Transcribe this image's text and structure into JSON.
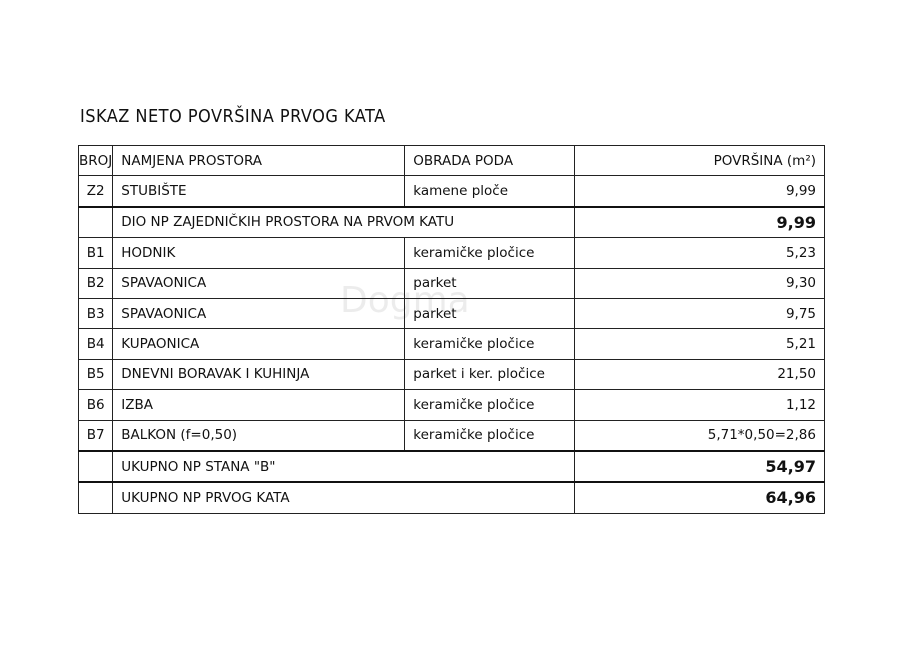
{
  "title": "ISKAZ NETO POVRŠINA PRVOG KATA",
  "headers": [
    "BROJ",
    "NAMJENA PROSTORA",
    "OBRADA PODA",
    "POVRŠINA (m²)"
  ],
  "rows": [
    {
      "broj": "Z2",
      "namjena": "STUBIŠTE",
      "obrada": "kamene ploče",
      "povrsina": "9,99"
    },
    {
      "summary": "DIO NP ZAJEDNIČKIH PROSTORA NA PRVOM KATU",
      "povrsina": "9,99"
    },
    {
      "broj": "B1",
      "namjena": "HODNIK",
      "obrada": "keramičke pločice",
      "povrsina": "5,23"
    },
    {
      "broj": "B2",
      "namjena": "SPAVAONICA",
      "obrada": "parket",
      "povrsina": "9,30"
    },
    {
      "broj": "B3",
      "namjena": "SPAVAONICA",
      "obrada": "parket",
      "povrsina": "9,75"
    },
    {
      "broj": "B4",
      "namjena": "KUPAONICA",
      "obrada": "keramičke pločice",
      "povrsina": "5,21"
    },
    {
      "broj": "B5",
      "namjena": "DNEVNI BORAVAK I KUHINJA",
      "obrada": "parket i ker. pločice",
      "povrsina": "21,50"
    },
    {
      "broj": "B6",
      "namjena": "IZBA",
      "obrada": "keramičke pločice",
      "povrsina": "1,12"
    },
    {
      "broj": "B7",
      "namjena": "BALKON (f=0,50)",
      "obrada": "keramičke pločice",
      "povrsina": "5,71*0,50=2,86"
    },
    {
      "summary": "UKUPNO NP STANA \"B\"",
      "povrsina": "54,97"
    },
    {
      "summary": "UKUPNO NP PRVOG KATA",
      "povrsina": "64,96"
    }
  ],
  "watermark": "Dogma"
}
